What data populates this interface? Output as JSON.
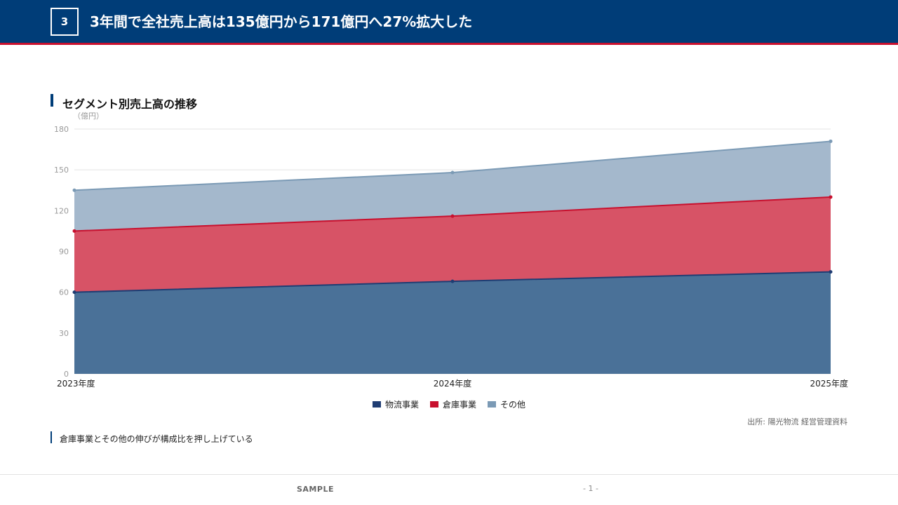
{
  "header": {
    "slide_number": "3",
    "title": "3年間で全社売上高は135億円から171億円へ27%拡大した"
  },
  "chart_title": "セグメント別売上高の推移",
  "unit_label": "（億円）",
  "source": "出所: 陽光物流 経営管理資料",
  "note": "倉庫事業とその他の伸びが構成比を押し上げている",
  "footer": {
    "left_label": "SAMPLE",
    "page_label": "- 1 -"
  },
  "colors": {
    "header_bg": "#003d78",
    "accent_red": "#c8102e"
  },
  "chart_data": {
    "type": "area",
    "stacked": true,
    "title": "セグメント別売上高の推移",
    "ylabel": "（億円）",
    "xlabel": "",
    "categories": [
      "2023年度",
      "2024年度",
      "2025年度"
    ],
    "ylim": [
      0,
      180
    ],
    "yticks": [
      0,
      30,
      60,
      90,
      120,
      150,
      180
    ],
    "grid": true,
    "legend": "bottom-center",
    "series": [
      {
        "name": "物流事業",
        "values": [
          60,
          68,
          75
        ],
        "color": "#1f3d73",
        "fill": "#4a7198"
      },
      {
        "name": "倉庫事業",
        "values": [
          45,
          48,
          55
        ],
        "color": "#c8102e",
        "fill": "#d75366"
      },
      {
        "name": "その他",
        "values": [
          30,
          32,
          41
        ],
        "color": "#7b9ab5",
        "fill": "#a4b8cc"
      }
    ]
  }
}
